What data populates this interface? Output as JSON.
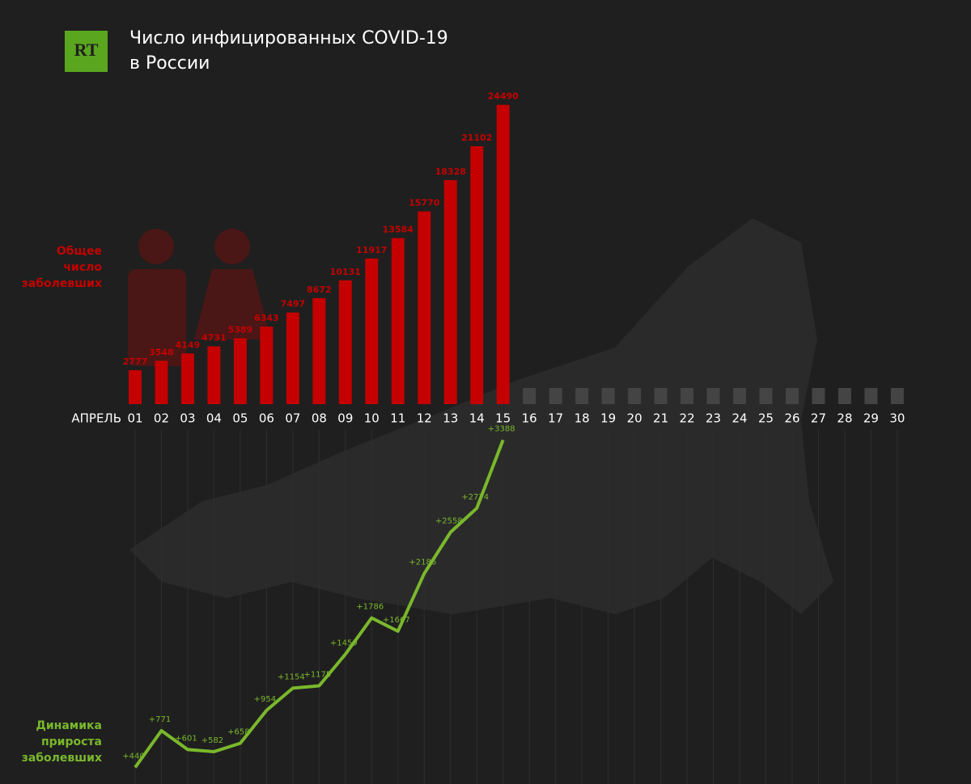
{
  "logo": "RT",
  "title": [
    "Число инфицированных COVID-19",
    "в России"
  ],
  "chart_data": [
    {
      "type": "bar",
      "axis_label": "АПРЕЛЬ",
      "label": [
        "Общее",
        "число",
        "заболевших"
      ],
      "categories": [
        "01",
        "02",
        "03",
        "04",
        "05",
        "06",
        "07",
        "08",
        "09",
        "10",
        "11",
        "12",
        "13",
        "14",
        "15",
        "16",
        "17",
        "18",
        "19",
        "20",
        "21",
        "22",
        "23",
        "24",
        "25",
        "26",
        "27",
        "28",
        "29",
        "30"
      ],
      "values": [
        2777,
        3548,
        4149,
        4731,
        5389,
        6343,
        7497,
        8672,
        10131,
        11917,
        13584,
        15770,
        18328,
        21102,
        24490,
        null,
        null,
        null,
        null,
        null,
        null,
        null,
        null,
        null,
        null,
        null,
        null,
        null,
        null,
        null
      ],
      "color": "#c40000",
      "ylim": [
        0,
        25000
      ]
    },
    {
      "type": "line",
      "label": [
        "Динамика",
        "прироста",
        "заболевших"
      ],
      "values": [
        440,
        771,
        601,
        582,
        658,
        954,
        1154,
        1175,
        1459,
        1786,
        1667,
        2186,
        2558,
        2774,
        3388,
        null,
        null,
        null,
        null,
        null,
        null,
        null,
        null,
        null,
        null,
        null,
        null,
        null,
        null,
        null
      ],
      "value_labels": [
        "+440",
        "+771",
        "+601",
        "+582",
        "+658",
        "+954",
        "+1154",
        "+1175",
        "+1459",
        "+1786",
        "+1667",
        "+2186",
        "+2558",
        "+2774",
        "+3388",
        null,
        null,
        null,
        null,
        null,
        null,
        null,
        null,
        null,
        null,
        null,
        null,
        null,
        null,
        null
      ],
      "color": "#7ab82c",
      "ylim": [
        0,
        3500
      ]
    }
  ]
}
